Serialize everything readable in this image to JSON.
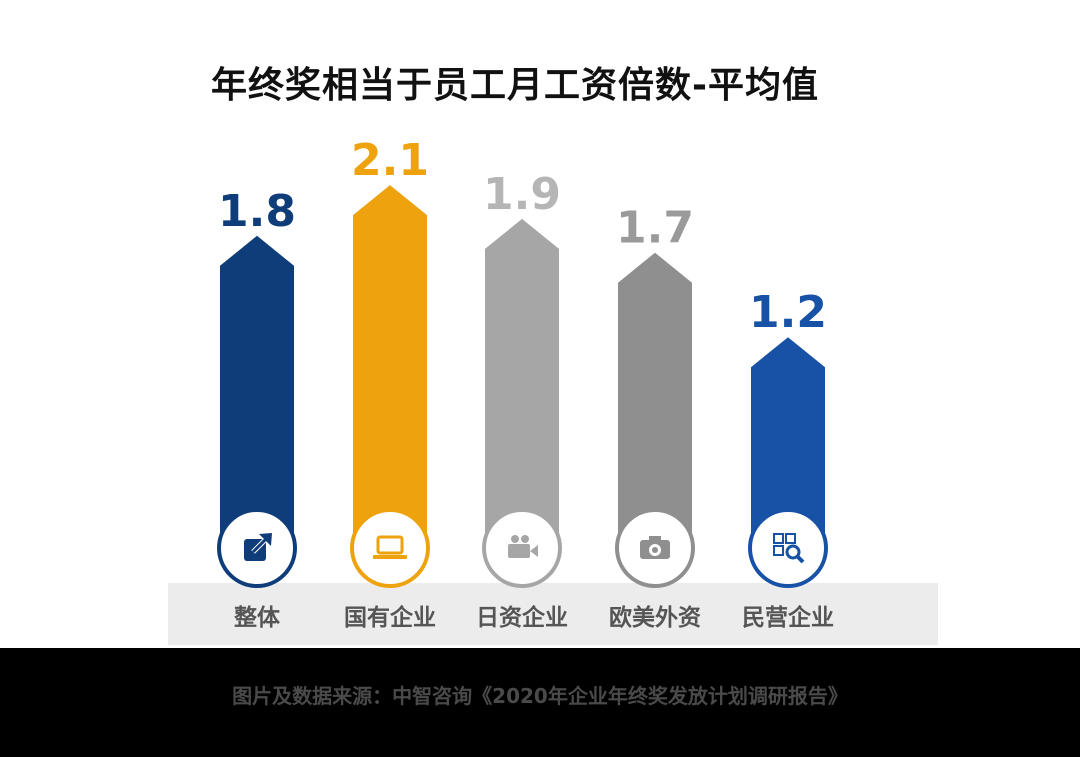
{
  "chart_data": {
    "type": "bar",
    "title": "年终奖相当于员工月工资倍数-平均值",
    "categories": [
      "整体",
      "国有企业",
      "日资企业",
      "欧美外资",
      "民营企业"
    ],
    "values": [
      1.8,
      2.1,
      1.9,
      1.7,
      1.2
    ],
    "value_labels": [
      "1.8",
      "2.1",
      "1.9",
      "1.7",
      "1.2"
    ],
    "bar_colors": [
      "#0f3d7a",
      "#eea20e",
      "#a6a6a6",
      "#8f8f8f",
      "#1752a6"
    ],
    "value_label_colors": [
      "#0f3d7a",
      "#eea20e",
      "#b5b5b5",
      "#9a9a9a",
      "#1752a6"
    ],
    "icons": [
      "share-arrow-icon",
      "laptop-icon",
      "video-camera-icon",
      "camera-icon",
      "qr-search-icon"
    ],
    "xlabel": "",
    "ylabel": "",
    "grid": false,
    "legend": "none"
  },
  "source": "图片及数据来源：中智咨询《2020年企业年终奖发放计划调研报告》"
}
